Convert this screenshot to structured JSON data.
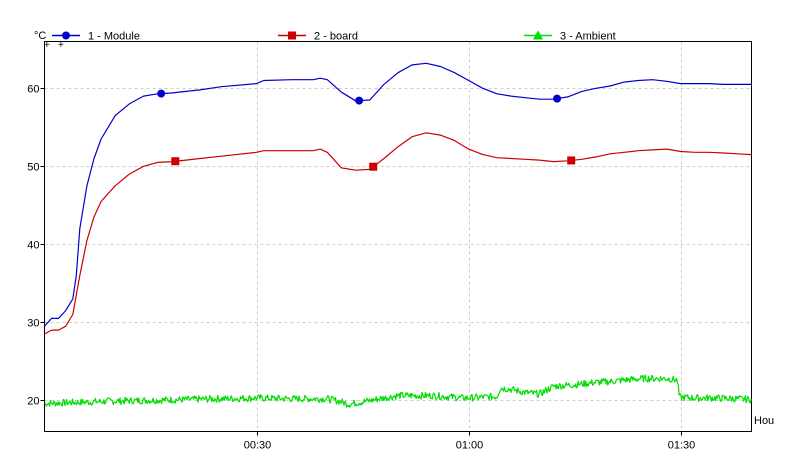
{
  "chart_data": {
    "type": "line",
    "y_unit": "°C",
    "x_unit": "Hou",
    "xlim": [
      0,
      100
    ],
    "ylim": [
      16,
      66
    ],
    "y_ticks": [
      20,
      30,
      40,
      50,
      60
    ],
    "x_ticks": [
      {
        "value": 30,
        "label": "00:30"
      },
      {
        "value": 60,
        "label": "01:00"
      },
      {
        "value": 90,
        "label": "01:30"
      }
    ],
    "grid": true,
    "legend_position": "top",
    "series": [
      {
        "name": "1 - Module",
        "color": "#0000cc",
        "marker": "circle",
        "marker_x": [
          16.5,
          44.5,
          72.5
        ],
        "x": [
          0,
          1,
          2,
          3,
          4,
          4.5,
          5,
          6,
          7,
          8,
          10,
          12,
          14,
          16,
          18,
          20,
          22,
          25,
          30,
          31,
          35,
          38,
          39,
          40,
          42,
          44,
          46,
          48,
          50,
          52,
          54,
          56,
          58,
          60,
          62,
          64,
          66,
          68,
          70,
          72,
          74,
          76,
          78,
          80,
          82,
          84,
          86,
          88,
          90,
          92,
          94,
          96,
          98,
          100
        ],
        "y": [
          29.5,
          30.5,
          30.5,
          31.5,
          33,
          36,
          42,
          47.5,
          51,
          53.5,
          56.5,
          58,
          59,
          59.3,
          59.4,
          59.6,
          59.8,
          60.2,
          60.6,
          61,
          61.1,
          61.1,
          61.3,
          61.1,
          59.5,
          58.4,
          58.5,
          60.5,
          62,
          63,
          63.2,
          62.8,
          62,
          61,
          60,
          59.3,
          59,
          58.8,
          58.6,
          58.6,
          58.9,
          59.6,
          60,
          60.3,
          60.8,
          61,
          61.1,
          60.9,
          60.6,
          60.6,
          60.6,
          60.5,
          60.5,
          60.5
        ]
      },
      {
        "name": "2 - board",
        "color": "#cc0000",
        "marker": "square",
        "marker_x": [
          18.5,
          46.5,
          74.5
        ],
        "x": [
          0,
          1,
          2,
          3,
          4,
          5,
          6,
          7,
          8,
          10,
          12,
          14,
          16,
          18,
          20,
          22,
          25,
          30,
          31,
          35,
          38,
          39,
          40,
          42,
          44,
          46,
          48,
          50,
          52,
          54,
          56,
          58,
          60,
          62,
          64,
          66,
          68,
          70,
          72,
          74,
          76,
          78,
          80,
          82,
          84,
          86,
          88,
          90,
          92,
          94,
          96,
          98,
          100
        ],
        "y": [
          28.5,
          29,
          29,
          29.5,
          31,
          36,
          40.5,
          43.5,
          45.5,
          47.5,
          49,
          50,
          50.5,
          50.6,
          50.8,
          51,
          51.3,
          51.8,
          52,
          52,
          52,
          52.2,
          51.8,
          49.8,
          49.5,
          49.6,
          51,
          52.5,
          53.8,
          54.3,
          54,
          53.3,
          52.2,
          51.5,
          51.1,
          51,
          50.9,
          50.8,
          50.6,
          50.7,
          50.9,
          51.2,
          51.6,
          51.8,
          52,
          52.1,
          52.2,
          51.9,
          51.8,
          51.8,
          51.7,
          51.6,
          51.5
        ]
      },
      {
        "name": "3 - Ambient",
        "color": "#00dd00",
        "marker": "triangle",
        "marker_x": [],
        "x": [
          0,
          10,
          20,
          30,
          35,
          40,
          42,
          43,
          45,
          48,
          50,
          55,
          58,
          59,
          60,
          62,
          64,
          64.5,
          66,
          68,
          70,
          72,
          75,
          78,
          80,
          82,
          85,
          88,
          89.5,
          89.8,
          92,
          95,
          100
        ],
        "y": [
          19.6,
          19.9,
          20.1,
          20.3,
          20.2,
          20.2,
          19.8,
          19.5,
          19.8,
          20.3,
          20.6,
          20.6,
          20.4,
          20.3,
          20.3,
          20.4,
          20.5,
          21.6,
          21.4,
          21.0,
          20.8,
          21.8,
          22.0,
          22.3,
          22.4,
          22.6,
          22.8,
          22.8,
          22.6,
          20.4,
          20.3,
          20.3,
          20.1
        ]
      }
    ]
  }
}
